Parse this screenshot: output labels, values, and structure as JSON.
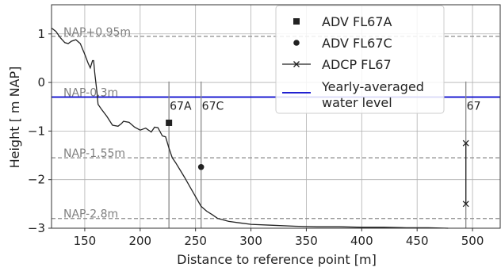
{
  "chart_data": {
    "type": "line",
    "xlabel": "Distance to reference point [m]",
    "ylabel": "Height [ m NAP]",
    "xlim": [
      120,
      525
    ],
    "ylim": [
      -3,
      1.6
    ],
    "xticks": [
      150,
      200,
      250,
      300,
      350,
      400,
      450,
      500
    ],
    "yticks": [
      -3,
      -2,
      -1,
      0,
      1
    ],
    "yticklabels": [
      "−3",
      "−2",
      "−1",
      "0",
      "1"
    ],
    "grid": true,
    "legend_position": "top-right",
    "legend": [
      {
        "label": "ADV FL67A",
        "marker": "square"
      },
      {
        "label": "ADV FL67C",
        "marker": "circle"
      },
      {
        "label": "ADCP FL67",
        "marker": "x"
      },
      {
        "label": "Yearly-averaged water level",
        "lines": [
          "Yearly-averaged",
          "water level"
        ],
        "marker": "line"
      }
    ],
    "reference_lines": [
      {
        "label": "NAP+0.95m",
        "y": 0.95
      },
      {
        "label": "NAP-0.3m",
        "y": -0.3
      },
      {
        "label": "NAP-1.55m",
        "y": -1.55
      },
      {
        "label": "NAP-2.8m",
        "y": -2.8
      }
    ],
    "water_level": -0.3,
    "vertical_lines": [
      {
        "label": "67A",
        "x": 226
      },
      {
        "label": "67C",
        "x": 255
      },
      {
        "label": "67",
        "x": 494
      }
    ],
    "bed_profile": {
      "x": [
        120,
        124,
        128,
        132,
        135,
        138,
        142,
        146,
        150,
        153,
        155,
        157,
        158,
        159,
        160,
        161,
        162,
        165,
        170,
        175,
        180,
        183,
        185,
        190,
        195,
        200,
        205,
        210,
        213,
        216,
        220,
        223,
        226,
        229,
        232,
        236,
        240,
        245,
        250,
        255,
        260,
        265,
        270,
        280,
        290,
        300,
        320,
        340,
        360,
        380,
        400,
        420,
        440,
        460,
        478
      ],
      "y": [
        1.12,
        1.05,
        0.92,
        0.82,
        0.8,
        0.85,
        0.88,
        0.8,
        0.58,
        0.4,
        0.3,
        0.45,
        0.45,
        0.2,
        0.0,
        -0.2,
        -0.45,
        -0.55,
        -0.7,
        -0.88,
        -0.9,
        -0.85,
        -0.8,
        -0.82,
        -0.92,
        -0.98,
        -0.94,
        -1.02,
        -0.92,
        -0.93,
        -1.1,
        -1.12,
        -1.35,
        -1.55,
        -1.65,
        -1.8,
        -1.95,
        -2.15,
        -2.35,
        -2.55,
        -2.65,
        -2.72,
        -2.8,
        -2.86,
        -2.89,
        -2.92,
        -2.94,
        -2.96,
        -2.97,
        -2.97,
        -2.98,
        -2.98,
        -2.99,
        -2.99,
        -3.0
      ]
    },
    "series": [
      {
        "name": "ADV FL67A",
        "marker": "square",
        "x": [
          226
        ],
        "y": [
          -0.83
        ]
      },
      {
        "name": "ADV FL67C",
        "marker": "circle",
        "x": [
          255
        ],
        "y": [
          -1.74
        ]
      },
      {
        "name": "ADCP FL67",
        "marker": "x",
        "x": [
          494,
          494
        ],
        "y": [
          -1.25,
          -2.5
        ]
      }
    ],
    "colors": {
      "profile": "#222222",
      "water_level": "#0000cc",
      "reference": "#8a8a8a",
      "vertical": "#8a8a8a",
      "grid": "#b0b0b0",
      "marker": "#222222"
    }
  }
}
